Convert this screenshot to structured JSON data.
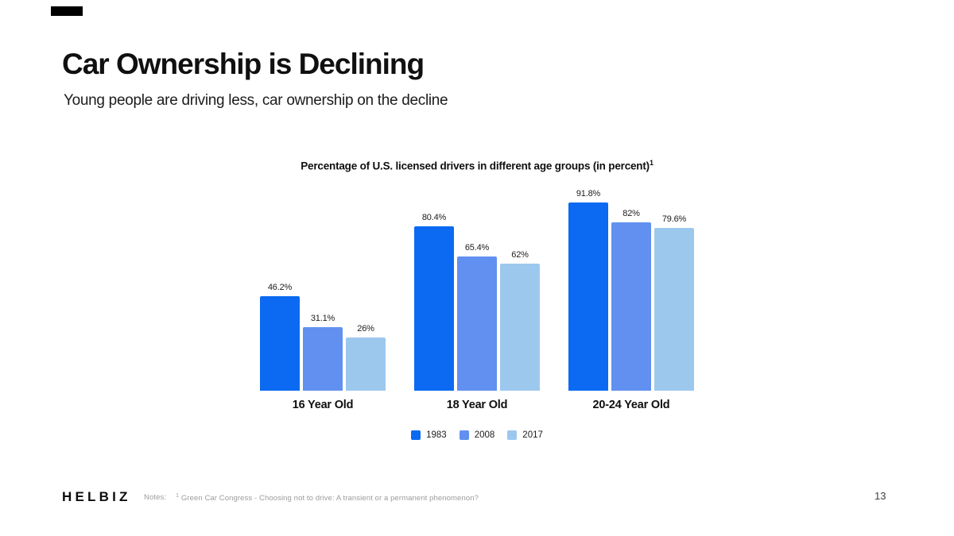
{
  "slide": {
    "title": "Car Ownership is Declining",
    "subtitle": "Young people are driving less, car ownership on the decline",
    "brand": "HELBIZ",
    "footer": {
      "notes_label": "Notes:",
      "note_superscript": "1",
      "note_text": "Green Car Congress - Choosing not to drive: A transient or a permanent phenomenon?",
      "page_number": "13"
    }
  },
  "chart_data": {
    "type": "bar",
    "title": "Percentage of U.S. licensed drivers in different age groups (in percent)",
    "title_superscript": "1",
    "categories": [
      "16 Year Old",
      "18 Year Old",
      "20-24 Year Old"
    ],
    "series": [
      {
        "name": "1983",
        "color": "#0b6af1",
        "values": [
          46.2,
          80.4,
          91.8
        ],
        "value_labels": [
          "46.2%",
          "80.4%",
          "91.8%"
        ]
      },
      {
        "name": "2008",
        "color": "#6190f0",
        "values": [
          31.1,
          65.4,
          82
        ],
        "value_labels": [
          "31.1%",
          "65.4%",
          "82%"
        ]
      },
      {
        "name": "2017",
        "color": "#9dc8ee",
        "values": [
          26,
          62,
          79.6
        ],
        "value_labels": [
          "26%",
          "62%",
          "79.6%"
        ]
      }
    ],
    "ylim": [
      0,
      100
    ],
    "grid": false,
    "legend_position": "bottom",
    "value_label_format": "percent"
  }
}
